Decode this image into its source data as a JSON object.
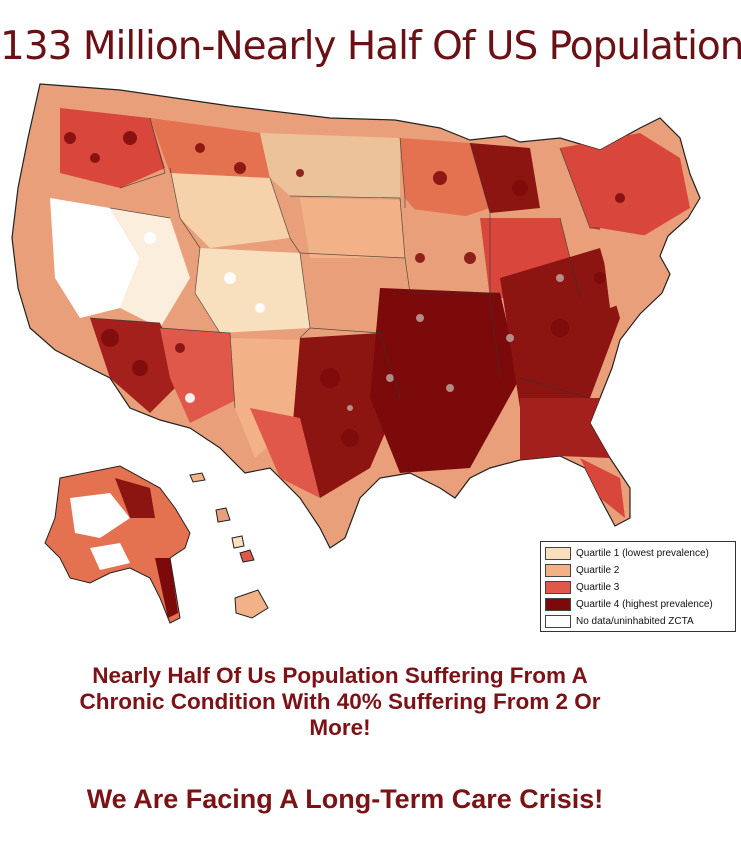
{
  "title": "133 Million-Nearly Half Of US Population",
  "legend": {
    "items": [
      {
        "label": "Quartile 1 (lowest prevalence)",
        "color": "#f8dfbd"
      },
      {
        "label": "Quartile 2",
        "color": "#f2b186"
      },
      {
        "label": "Quartile 3",
        "color": "#e0584a"
      },
      {
        "label": "Quartile 4 (highest prevalence)",
        "color": "#7d0a0a"
      },
      {
        "label": "No data/uninhabited ZCTA",
        "color": "#ffffff"
      }
    ]
  },
  "subtitle": {
    "line1": "Nearly Half Of Us Population Suffering From A",
    "line2": "Chronic Condition With 40%  Suffering From 2 Or",
    "line3": "More!"
  },
  "crisis": "We Are Facing A Long-Term Care Crisis!"
}
